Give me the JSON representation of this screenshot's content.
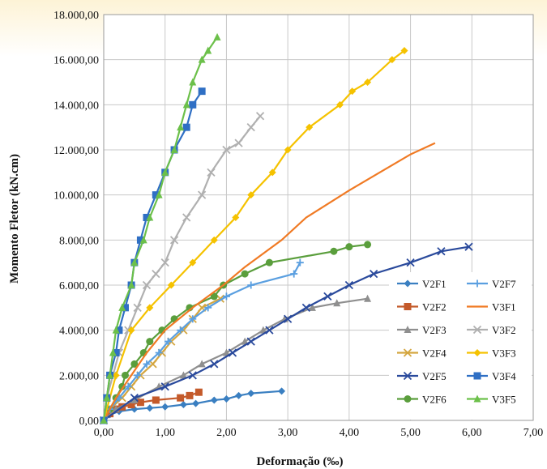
{
  "chart_data": {
    "type": "line",
    "title": "",
    "xlabel": "Deformação (‰)",
    "ylabel": "Momento Fletor (kN.cm)",
    "xlim": [
      0,
      7
    ],
    "ylim": [
      0,
      18000
    ],
    "x_ticks": [
      "0,00",
      "1,00",
      "2,00",
      "3,00",
      "4,00",
      "5,00",
      "6,00",
      "7,00"
    ],
    "y_ticks": [
      "0,00",
      "2.000,00",
      "4.000,00",
      "6.000,00",
      "8.000,00",
      "10.000,00",
      "12.000,00",
      "14.000,00",
      "16.000,00",
      "18.000,00"
    ],
    "grid": true,
    "legend_position": "bottom-right",
    "series": [
      {
        "name": "V2F1",
        "color": "#3a7fc1",
        "marker": "diamond",
        "points": [
          [
            0,
            0
          ],
          [
            0.1,
            250
          ],
          [
            0.25,
            400
          ],
          [
            0.5,
            500
          ],
          [
            0.75,
            550
          ],
          [
            1.0,
            600
          ],
          [
            1.3,
            700
          ],
          [
            1.5,
            750
          ],
          [
            1.8,
            900
          ],
          [
            2.0,
            950
          ],
          [
            2.2,
            1100
          ],
          [
            2.4,
            1200
          ],
          [
            2.9,
            1300
          ]
        ]
      },
      {
        "name": "V2F2",
        "color": "#c45a2a",
        "marker": "square",
        "points": [
          [
            0,
            0
          ],
          [
            0.1,
            300
          ],
          [
            0.2,
            500
          ],
          [
            0.3,
            600
          ],
          [
            0.45,
            700
          ],
          [
            0.6,
            800
          ],
          [
            0.85,
            900
          ],
          [
            1.25,
            1000
          ],
          [
            1.4,
            1100
          ],
          [
            1.55,
            1250
          ]
        ]
      },
      {
        "name": "V2F3",
        "color": "#8f8f8f",
        "marker": "triangle",
        "points": [
          [
            0,
            0
          ],
          [
            0.2,
            500
          ],
          [
            0.5,
            900
          ],
          [
            0.9,
            1500
          ],
          [
            1.3,
            2000
          ],
          [
            1.6,
            2500
          ],
          [
            2.0,
            3000
          ],
          [
            2.3,
            3500
          ],
          [
            2.6,
            4000
          ],
          [
            2.95,
            4500
          ],
          [
            3.4,
            5000
          ],
          [
            3.8,
            5200
          ],
          [
            4.3,
            5400
          ]
        ]
      },
      {
        "name": "V2F4",
        "color": "#d4a640",
        "marker": "x",
        "points": [
          [
            0,
            0
          ],
          [
            0.1,
            500
          ],
          [
            0.3,
            1000
          ],
          [
            0.45,
            1500
          ],
          [
            0.6,
            2000
          ],
          [
            0.8,
            2500
          ],
          [
            0.95,
            3000
          ],
          [
            1.1,
            3500
          ],
          [
            1.3,
            4000
          ],
          [
            1.45,
            4500
          ],
          [
            1.6,
            5000
          ],
          [
            1.9,
            5400
          ]
        ]
      },
      {
        "name": "V2F5",
        "color": "#2a4a9c",
        "marker": "x",
        "points": [
          [
            0,
            0
          ],
          [
            0.5,
            1000
          ],
          [
            1.0,
            1500
          ],
          [
            1.45,
            2000
          ],
          [
            1.8,
            2500
          ],
          [
            2.1,
            3000
          ],
          [
            2.4,
            3500
          ],
          [
            2.7,
            4000
          ],
          [
            3.0,
            4500
          ],
          [
            3.3,
            5000
          ],
          [
            3.65,
            5500
          ],
          [
            4.0,
            6000
          ],
          [
            4.4,
            6500
          ],
          [
            5.0,
            7000
          ],
          [
            5.5,
            7500
          ],
          [
            5.95,
            7700
          ]
        ]
      },
      {
        "name": "V2F6",
        "color": "#5a9e3c",
        "marker": "circle",
        "points": [
          [
            0,
            0
          ],
          [
            0.1,
            500
          ],
          [
            0.2,
            1000
          ],
          [
            0.3,
            1500
          ],
          [
            0.35,
            2000
          ],
          [
            0.5,
            2500
          ],
          [
            0.65,
            3000
          ],
          [
            0.75,
            3500
          ],
          [
            0.95,
            4000
          ],
          [
            1.15,
            4500
          ],
          [
            1.4,
            5000
          ],
          [
            1.8,
            5500
          ],
          [
            1.95,
            6000
          ],
          [
            2.3,
            6500
          ],
          [
            2.7,
            7000
          ],
          [
            3.75,
            7500
          ],
          [
            4.0,
            7700
          ],
          [
            4.3,
            7800
          ]
        ]
      },
      {
        "name": "V2F7",
        "color": "#5a9fe0",
        "marker": "plus",
        "points": [
          [
            0,
            0
          ],
          [
            0.1,
            500
          ],
          [
            0.25,
            1000
          ],
          [
            0.4,
            1500
          ],
          [
            0.55,
            2000
          ],
          [
            0.7,
            2500
          ],
          [
            0.9,
            3000
          ],
          [
            1.05,
            3500
          ],
          [
            1.25,
            4000
          ],
          [
            1.45,
            4500
          ],
          [
            1.7,
            5000
          ],
          [
            2.0,
            5500
          ],
          [
            2.4,
            6000
          ],
          [
            3.1,
            6500
          ],
          [
            3.2,
            7000
          ]
        ]
      },
      {
        "name": "V3F1",
        "color": "#f07a24",
        "marker": "none",
        "points": [
          [
            0,
            0
          ],
          [
            0.2,
            1000
          ],
          [
            0.45,
            2000
          ],
          [
            0.7,
            3000
          ],
          [
            1.0,
            4000
          ],
          [
            1.45,
            5000
          ],
          [
            1.95,
            6000
          ],
          [
            2.3,
            6800
          ],
          [
            2.9,
            8000
          ],
          [
            3.3,
            9000
          ],
          [
            4.0,
            10200
          ],
          [
            4.5,
            11000
          ],
          [
            5.0,
            11800
          ],
          [
            5.4,
            12300
          ]
        ]
      },
      {
        "name": "V3F2",
        "color": "#b0b0b0",
        "marker": "x",
        "points": [
          [
            0,
            0
          ],
          [
            0.05,
            1000
          ],
          [
            0.15,
            2000
          ],
          [
            0.25,
            3000
          ],
          [
            0.4,
            4000
          ],
          [
            0.55,
            5000
          ],
          [
            0.7,
            6000
          ],
          [
            0.85,
            6500
          ],
          [
            1.0,
            7000
          ],
          [
            1.15,
            8000
          ],
          [
            1.35,
            9000
          ],
          [
            1.6,
            10000
          ],
          [
            1.75,
            11000
          ],
          [
            2.0,
            12000
          ],
          [
            2.2,
            12300
          ],
          [
            2.4,
            13000
          ],
          [
            2.55,
            13500
          ]
        ]
      },
      {
        "name": "V3F3",
        "color": "#f5c200",
        "marker": "diamond",
        "points": [
          [
            0,
            0
          ],
          [
            0.2,
            2000
          ],
          [
            0.45,
            4000
          ],
          [
            0.75,
            5000
          ],
          [
            1.1,
            6000
          ],
          [
            1.45,
            7000
          ],
          [
            1.8,
            8000
          ],
          [
            2.15,
            9000
          ],
          [
            2.4,
            10000
          ],
          [
            2.75,
            11000
          ],
          [
            3.0,
            12000
          ],
          [
            3.35,
            13000
          ],
          [
            3.85,
            14000
          ],
          [
            4.05,
            14600
          ],
          [
            4.3,
            15000
          ],
          [
            4.7,
            16000
          ],
          [
            4.9,
            16400
          ]
        ]
      },
      {
        "name": "V3F4",
        "color": "#2f6fc4",
        "marker": "square",
        "points": [
          [
            0,
            0
          ],
          [
            0.05,
            1000
          ],
          [
            0.1,
            2000
          ],
          [
            0.2,
            3000
          ],
          [
            0.25,
            4000
          ],
          [
            0.35,
            5000
          ],
          [
            0.45,
            6000
          ],
          [
            0.5,
            7000
          ],
          [
            0.6,
            8000
          ],
          [
            0.7,
            9000
          ],
          [
            0.85,
            10000
          ],
          [
            1.0,
            11000
          ],
          [
            1.15,
            12000
          ],
          [
            1.35,
            13000
          ],
          [
            1.45,
            14000
          ],
          [
            1.6,
            14600
          ]
        ]
      },
      {
        "name": "V3F5",
        "color": "#6cc04a",
        "marker": "triangle",
        "points": [
          [
            0,
            0
          ],
          [
            0.05,
            1000
          ],
          [
            0.1,
            2000
          ],
          [
            0.15,
            3000
          ],
          [
            0.2,
            4000
          ],
          [
            0.3,
            5000
          ],
          [
            0.45,
            6000
          ],
          [
            0.5,
            7000
          ],
          [
            0.65,
            8000
          ],
          [
            0.75,
            9000
          ],
          [
            0.9,
            10000
          ],
          [
            1.0,
            11000
          ],
          [
            1.15,
            12000
          ],
          [
            1.25,
            13000
          ],
          [
            1.35,
            14000
          ],
          [
            1.45,
            15000
          ],
          [
            1.6,
            16000
          ],
          [
            1.7,
            16400
          ],
          [
            1.85,
            17000
          ]
        ]
      }
    ]
  }
}
